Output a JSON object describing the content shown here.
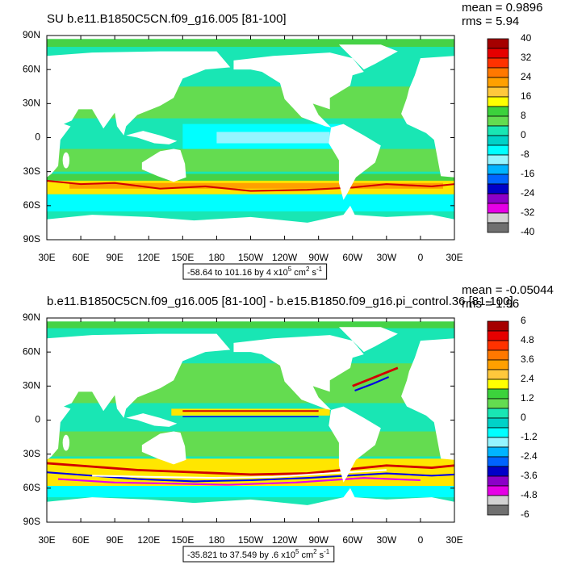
{
  "panels": [
    {
      "title": "SU b.e11.B1850C5CN.f09_g16.005 [81-100]",
      "mean": "mean = 0.9896",
      "rms": "rms = 5.94",
      "lat_labels": [
        "90N",
        "60N",
        "30N",
        "0",
        "30S",
        "60S",
        "90S"
      ],
      "lon_labels": [
        "30E",
        "60E",
        "90E",
        "120E",
        "150E",
        "180",
        "150W",
        "120W",
        "90W",
        "60W",
        "30W",
        "0",
        "30E"
      ],
      "colorbar_labels": [
        40,
        32,
        24,
        16,
        8,
        0,
        -8,
        -16,
        -24,
        -32,
        -40
      ],
      "range_note": {
        "text": "-58.64 to 101.16 by 4 x10",
        "exp": "5",
        "unit1": " cm",
        "unit1_exp": "2",
        "unit2": " s",
        "unit2_exp": "-1"
      }
    },
    {
      "title": "b.e11.B1850C5CN.f09_g16.005 [81-100] - b.e15.B1850.f09_g16.pi_control.36 [81-100]",
      "mean": "mean = -0.05044",
      "rms": "rms = 1.96",
      "lat_labels": [
        "90N",
        "60N",
        "30N",
        "0",
        "30S",
        "60S",
        "90S"
      ],
      "lon_labels": [
        "30E",
        "60E",
        "90E",
        "120E",
        "150E",
        "180",
        "150W",
        "120W",
        "90W",
        "60W",
        "30W",
        "0",
        "30E"
      ],
      "colorbar_labels": [
        6,
        4.8,
        3.6,
        2.4,
        1.2,
        0,
        -1.2,
        -2.4,
        -3.6,
        -4.8,
        -6
      ],
      "range_note": {
        "text": "-35.821 to 37.549 by .6 x10",
        "exp": "5",
        "unit1": " cm",
        "unit1_exp": "2",
        "unit2": " s",
        "unit2_exp": "-1"
      }
    }
  ]
}
